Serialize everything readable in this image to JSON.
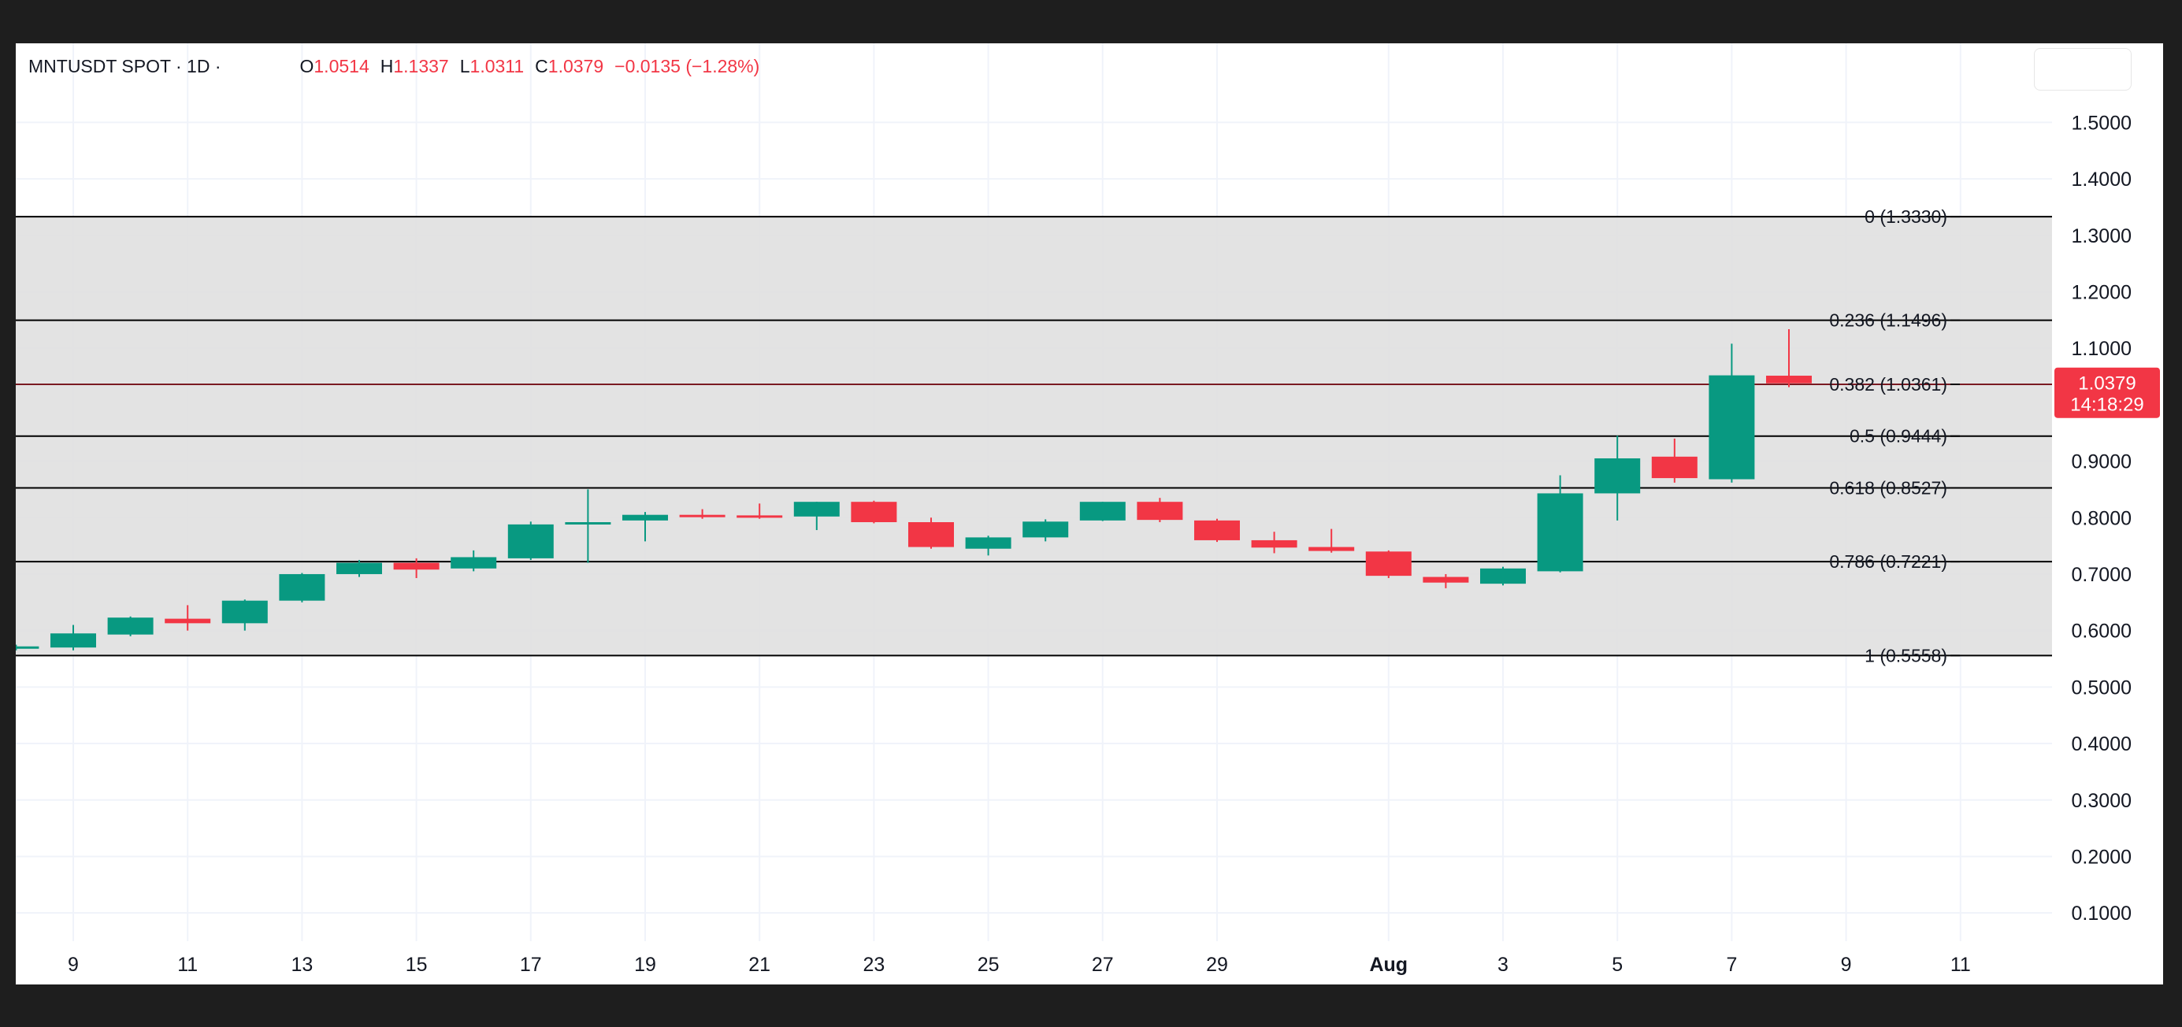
{
  "legend": {
    "symbol": "MNTUSDT SPOT · 1D ·",
    "open_key": "O",
    "open": "1.0514",
    "high_key": "H",
    "high": "1.1337",
    "low_key": "L",
    "low": "1.0311",
    "close_key": "C",
    "close": "1.0379",
    "change": "−0.0135 (−1.28%)"
  },
  "price_label": {
    "price": "1.0379",
    "countdown": "14:18:29",
    "value": 1.0379
  },
  "colors": {
    "up": "#089981",
    "down": "#f23645",
    "zone": "#e0e0e0",
    "fib_line": "#000000",
    "grid": "#f0f3fa",
    "axis_text": "#131722"
  },
  "chart_data": {
    "type": "candlestick",
    "title": "MNTUSDT SPOT · 1D",
    "ylim": [
      0.05,
      1.64
    ],
    "y_ticks": [
      "1.5000",
      "1.4000",
      "1.3000",
      "1.2000",
      "1.1000",
      "0.9000",
      "0.8000",
      "0.7000",
      "0.6000",
      "0.5000",
      "0.4000",
      "0.3000",
      "0.2000",
      "0.1000"
    ],
    "y_tick_values": [
      1.5,
      1.4,
      1.3,
      1.2,
      1.1,
      0.9,
      0.8,
      0.7,
      0.6,
      0.5,
      0.4,
      0.3,
      0.2,
      0.1
    ],
    "x_ticks": [
      {
        "label": "9",
        "day": 9
      },
      {
        "label": "11",
        "day": 11
      },
      {
        "label": "13",
        "day": 13
      },
      {
        "label": "15",
        "day": 15
      },
      {
        "label": "17",
        "day": 17
      },
      {
        "label": "19",
        "day": 19
      },
      {
        "label": "21",
        "day": 21
      },
      {
        "label": "23",
        "day": 23
      },
      {
        "label": "25",
        "day": 25
      },
      {
        "label": "27",
        "day": 27
      },
      {
        "label": "29",
        "day": 29
      },
      {
        "label": "Aug",
        "day": 32,
        "bold": true
      },
      {
        "label": "3",
        "day": 34
      },
      {
        "label": "5",
        "day": 36
      },
      {
        "label": "7",
        "day": 38
      },
      {
        "label": "9",
        "day": 40
      },
      {
        "label": "11",
        "day": 42
      }
    ],
    "x_range": [
      8,
      43.6
    ],
    "fib_levels": [
      {
        "label": "0 (1.3330)",
        "value": 1.333
      },
      {
        "label": "0.236 (1.1496)",
        "value": 1.1496
      },
      {
        "label": "0.382 (1.0361)",
        "value": 1.0361
      },
      {
        "label": "0.5 (0.9444)",
        "value": 0.9444
      },
      {
        "label": "0.618 (0.8527)",
        "value": 0.8527
      },
      {
        "label": "0.786 (0.7221)",
        "value": 0.7221
      },
      {
        "label": "1 (0.5558)",
        "value": 0.5558
      }
    ],
    "candles": [
      {
        "day": 8,
        "o": 0.57,
        "h": 0.575,
        "l": 0.565,
        "c": 0.572
      },
      {
        "day": 9,
        "o": 0.57,
        "h": 0.61,
        "l": 0.565,
        "c": 0.595
      },
      {
        "day": 10,
        "o": 0.593,
        "h": 0.625,
        "l": 0.59,
        "c": 0.623
      },
      {
        "day": 11,
        "o": 0.621,
        "h": 0.645,
        "l": 0.6,
        "c": 0.613
      },
      {
        "day": 12,
        "o": 0.613,
        "h": 0.655,
        "l": 0.6,
        "c": 0.653
      },
      {
        "day": 13,
        "o": 0.653,
        "h": 0.702,
        "l": 0.65,
        "c": 0.7
      },
      {
        "day": 14,
        "o": 0.7,
        "h": 0.725,
        "l": 0.695,
        "c": 0.72
      },
      {
        "day": 15,
        "o": 0.72,
        "h": 0.728,
        "l": 0.693,
        "c": 0.708
      },
      {
        "day": 16,
        "o": 0.71,
        "h": 0.742,
        "l": 0.705,
        "c": 0.73
      },
      {
        "day": 17,
        "o": 0.728,
        "h": 0.793,
        "l": 0.725,
        "c": 0.788
      },
      {
        "day": 18,
        "o": 0.788,
        "h": 0.85,
        "l": 0.72,
        "c": 0.792
      },
      {
        "day": 19,
        "o": 0.795,
        "h": 0.81,
        "l": 0.758,
        "c": 0.805
      },
      {
        "day": 20,
        "o": 0.805,
        "h": 0.815,
        "l": 0.798,
        "c": 0.803
      },
      {
        "day": 21,
        "o": 0.804,
        "h": 0.825,
        "l": 0.798,
        "c": 0.803
      },
      {
        "day": 22,
        "o": 0.802,
        "h": 0.828,
        "l": 0.778,
        "c": 0.828
      },
      {
        "day": 23,
        "o": 0.828,
        "h": 0.83,
        "l": 0.79,
        "c": 0.792
      },
      {
        "day": 24,
        "o": 0.792,
        "h": 0.8,
        "l": 0.745,
        "c": 0.748
      },
      {
        "day": 25,
        "o": 0.745,
        "h": 0.768,
        "l": 0.733,
        "c": 0.765
      },
      {
        "day": 26,
        "o": 0.765,
        "h": 0.797,
        "l": 0.758,
        "c": 0.793
      },
      {
        "day": 27,
        "o": 0.795,
        "h": 0.828,
        "l": 0.794,
        "c": 0.828
      },
      {
        "day": 28,
        "o": 0.828,
        "h": 0.835,
        "l": 0.792,
        "c": 0.796
      },
      {
        "day": 29,
        "o": 0.795,
        "h": 0.798,
        "l": 0.757,
        "c": 0.76
      },
      {
        "day": 30,
        "o": 0.76,
        "h": 0.775,
        "l": 0.737,
        "c": 0.747
      },
      {
        "day": 31,
        "o": 0.748,
        "h": 0.78,
        "l": 0.738,
        "c": 0.741
      },
      {
        "day": 32,
        "o": 0.74,
        "h": 0.742,
        "l": 0.693,
        "c": 0.697
      },
      {
        "day": 33,
        "o": 0.695,
        "h": 0.7,
        "l": 0.675,
        "c": 0.685
      },
      {
        "day": 34,
        "o": 0.683,
        "h": 0.713,
        "l": 0.68,
        "c": 0.71
      },
      {
        "day": 35,
        "o": 0.705,
        "h": 0.875,
        "l": 0.703,
        "c": 0.843
      },
      {
        "day": 36,
        "o": 0.843,
        "h": 0.945,
        "l": 0.795,
        "c": 0.905
      },
      {
        "day": 37,
        "o": 0.908,
        "h": 0.94,
        "l": 0.862,
        "c": 0.87
      },
      {
        "day": 38,
        "o": 0.868,
        "h": 1.108,
        "l": 0.862,
        "c": 1.052
      },
      {
        "day": 39,
        "o": 1.0514,
        "h": 1.1337,
        "l": 1.0311,
        "c": 1.0379
      }
    ]
  }
}
